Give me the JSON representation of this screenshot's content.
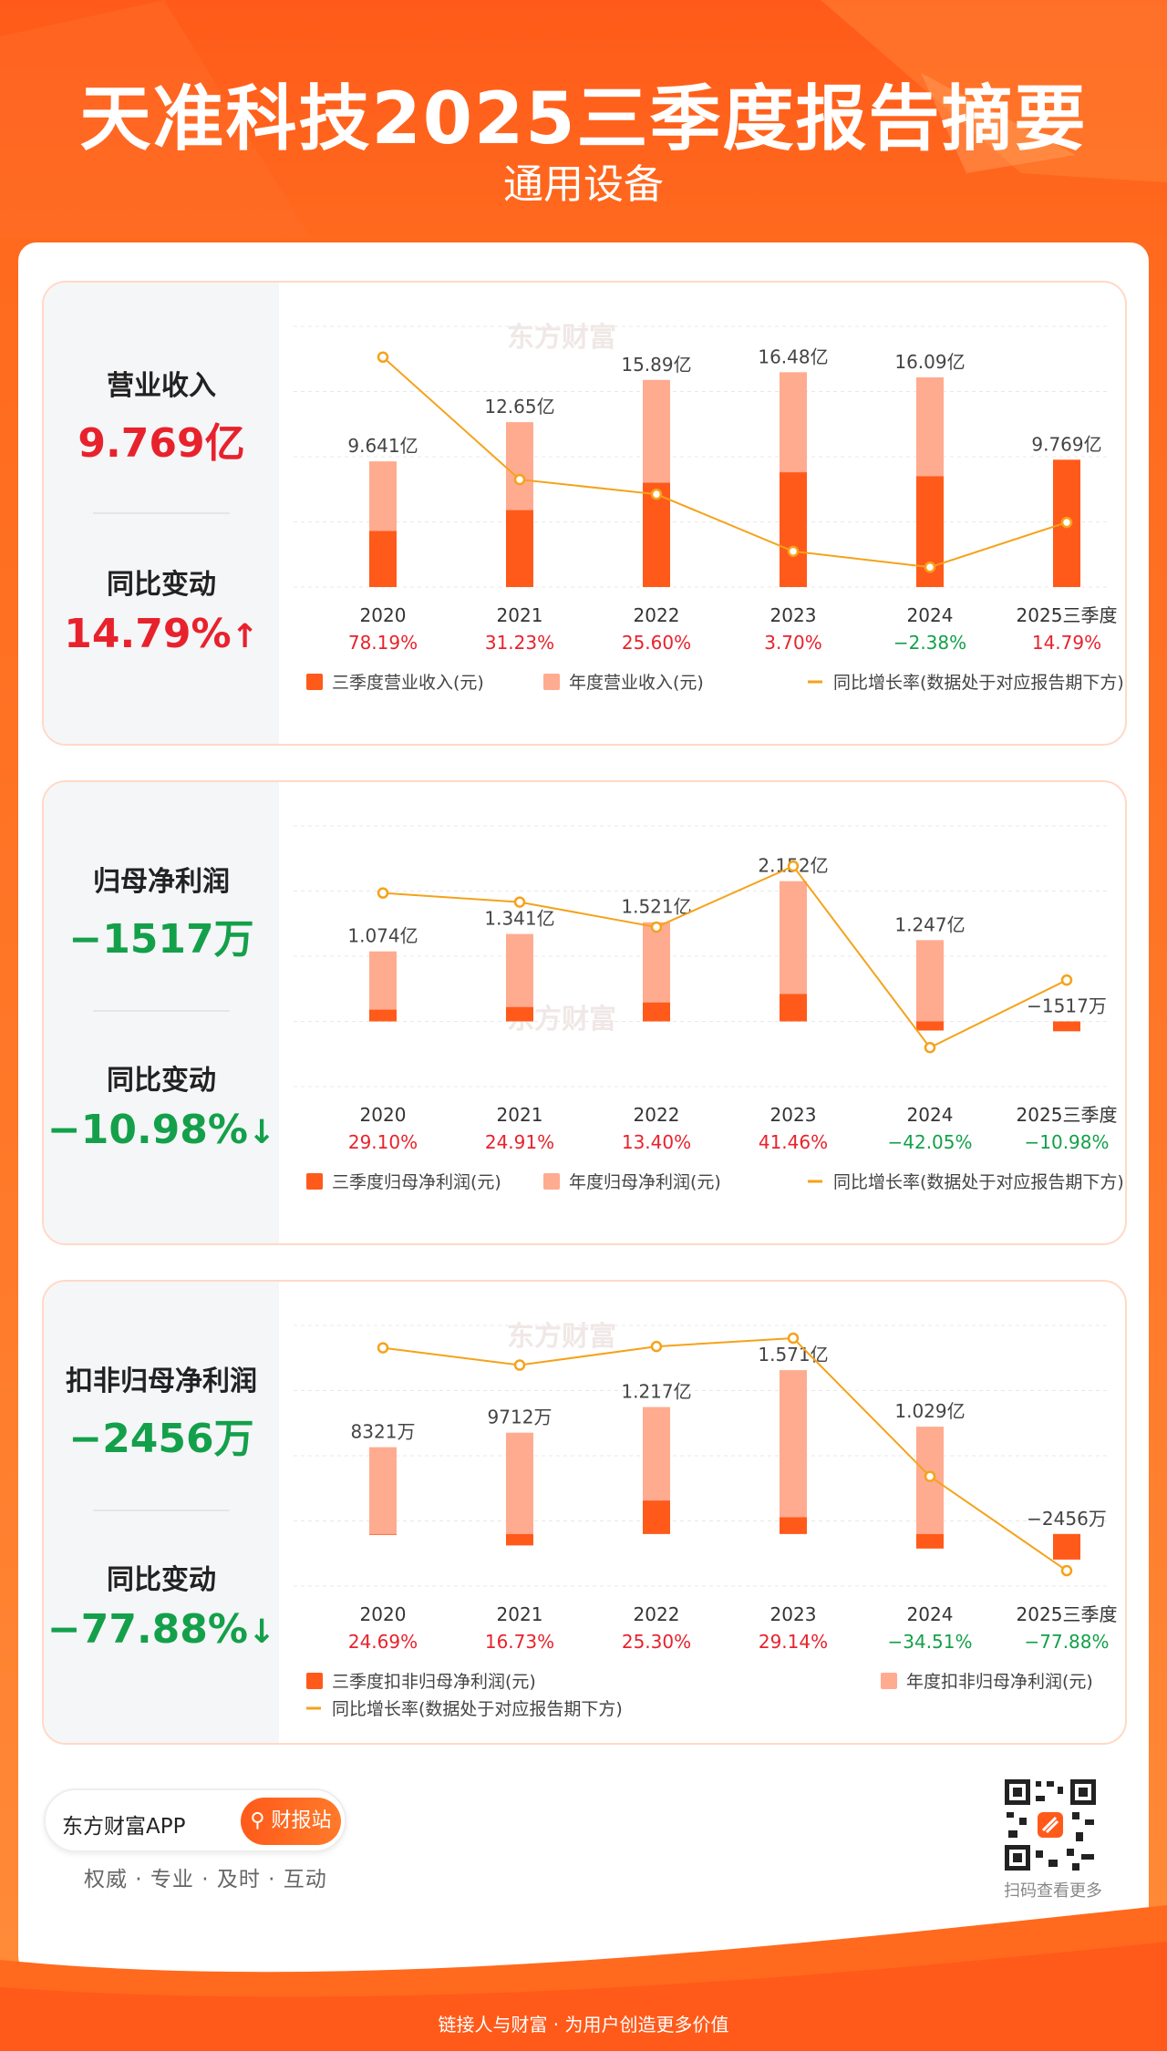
{
  "header": {
    "title": "天准科技2025三季度报告摘要",
    "subtitle": "通用设备"
  },
  "colors": {
    "q3_bar": "#ff5a1a",
    "annual_bar": "#ffab90",
    "line": "#f5a21a",
    "red": "#e8222c",
    "green": "#14a04a"
  },
  "watermark": "东方财富",
  "cards": [
    {
      "metric_label": "营业收入",
      "metric_value": "9.769亿",
      "change_label": "同比变动",
      "change_value": "14.79%",
      "change_arrow": "↑",
      "change_dir": "up"
    },
    {
      "metric_label": "归母净利润",
      "metric_value": "−1517万",
      "change_label": "同比变动",
      "change_value": "−10.98%",
      "change_arrow": "↓",
      "change_dir": "down"
    },
    {
      "metric_label": "扣非归母净利润",
      "metric_value": "−2456万",
      "change_label": "同比变动",
      "change_value": "−77.88%",
      "change_arrow": "↓",
      "change_dir": "down"
    }
  ],
  "chart_data": [
    {
      "type": "bar",
      "title": "营业收入",
      "categories": [
        "2020",
        "2021",
        "2022",
        "2023",
        "2024",
        "2025三季度"
      ],
      "unit": "亿元",
      "series": [
        {
          "name": "三季度营业收入(元)",
          "values": [
            4.3,
            5.9,
            8.0,
            8.8,
            8.5,
            9.769
          ]
        },
        {
          "name": "年度营业收入(元)",
          "values": [
            9.641,
            12.65,
            15.89,
            16.48,
            16.09,
            null
          ]
        }
      ],
      "bar_labels": [
        "9.641亿",
        "12.65亿",
        "15.89亿",
        "16.48亿",
        "16.09亿",
        "9.769亿"
      ],
      "growth_rates": [
        78.19,
        31.23,
        25.6,
        3.7,
        -2.38,
        14.79
      ],
      "growth_labels": [
        "78.19%",
        "31.23%",
        "25.60%",
        "3.70%",
        "−2.38%",
        "14.79%"
      ],
      "ylim": [
        0,
        20
      ],
      "line_range": [
        -10,
        90
      ],
      "legend": [
        "三季度营业收入(元)",
        "年度营业收入(元)",
        "同比增长率(数据处于对应报告期下方)"
      ]
    },
    {
      "type": "bar",
      "title": "归母净利润",
      "categories": [
        "2020",
        "2021",
        "2022",
        "2023",
        "2024",
        "2025三季度"
      ],
      "unit": "亿元",
      "series": [
        {
          "name": "三季度归母净利润(元)",
          "values": [
            0.18,
            0.22,
            0.29,
            0.42,
            -0.14,
            -0.1517
          ]
        },
        {
          "name": "年度归母净利润(元)",
          "values": [
            1.074,
            1.341,
            1.521,
            2.152,
            1.247,
            null
          ]
        }
      ],
      "bar_labels": [
        "1.074亿",
        "1.341亿",
        "1.521亿",
        "2.152亿",
        "1.247亿",
        "−1517万"
      ],
      "growth_rates": [
        29.1,
        24.91,
        13.4,
        41.46,
        -42.05,
        -10.98
      ],
      "growth_labels": [
        "29.10%",
        "24.91%",
        "13.40%",
        "41.46%",
        "−42.05%",
        "−10.98%"
      ],
      "ylim": [
        -1,
        3
      ],
      "line_range": [
        -60,
        60
      ],
      "legend": [
        "三季度归母净利润(元)",
        "年度归母净利润(元)",
        "同比增长率(数据处于对应报告期下方)"
      ]
    },
    {
      "type": "bar",
      "title": "扣非归母净利润",
      "categories": [
        "2020",
        "2021",
        "2022",
        "2023",
        "2024",
        "2025三季度"
      ],
      "unit": "亿元",
      "series": [
        {
          "name": "三季度扣非归母净利润(元)",
          "values": [
            0.0,
            -0.11,
            0.32,
            0.16,
            -0.14,
            -0.2456
          ]
        },
        {
          "name": "年度扣非归母净利润(元)",
          "values": [
            0.8321,
            0.9712,
            1.217,
            1.571,
            1.029,
            null
          ]
        }
      ],
      "bar_labels": [
        "8321万",
        "9712万",
        "1.217亿",
        "1.571亿",
        "1.029亿",
        "−2456万"
      ],
      "growth_rates": [
        24.69,
        16.73,
        25.3,
        29.14,
        -34.51,
        -77.88
      ],
      "growth_labels": [
        "24.69%",
        "16.73%",
        "25.30%",
        "29.14%",
        "−34.51%",
        "−77.88%"
      ],
      "ylim": [
        -0.5,
        2.0
      ],
      "line_range": [
        -85,
        35
      ],
      "legend": [
        "三季度扣非归母净利润(元)",
        "年度扣非归母净利润(元)",
        "同比增长率(数据处于对应报告期下方)"
      ]
    }
  ],
  "footer": {
    "app_name": "东方财富APP",
    "button_label": "财报站",
    "tagline": "权威 · 专业 · 及时 · 互动",
    "qr_caption": "扫码查看更多",
    "slogan": "链接人与财富 · 为用户创造更多价值"
  }
}
